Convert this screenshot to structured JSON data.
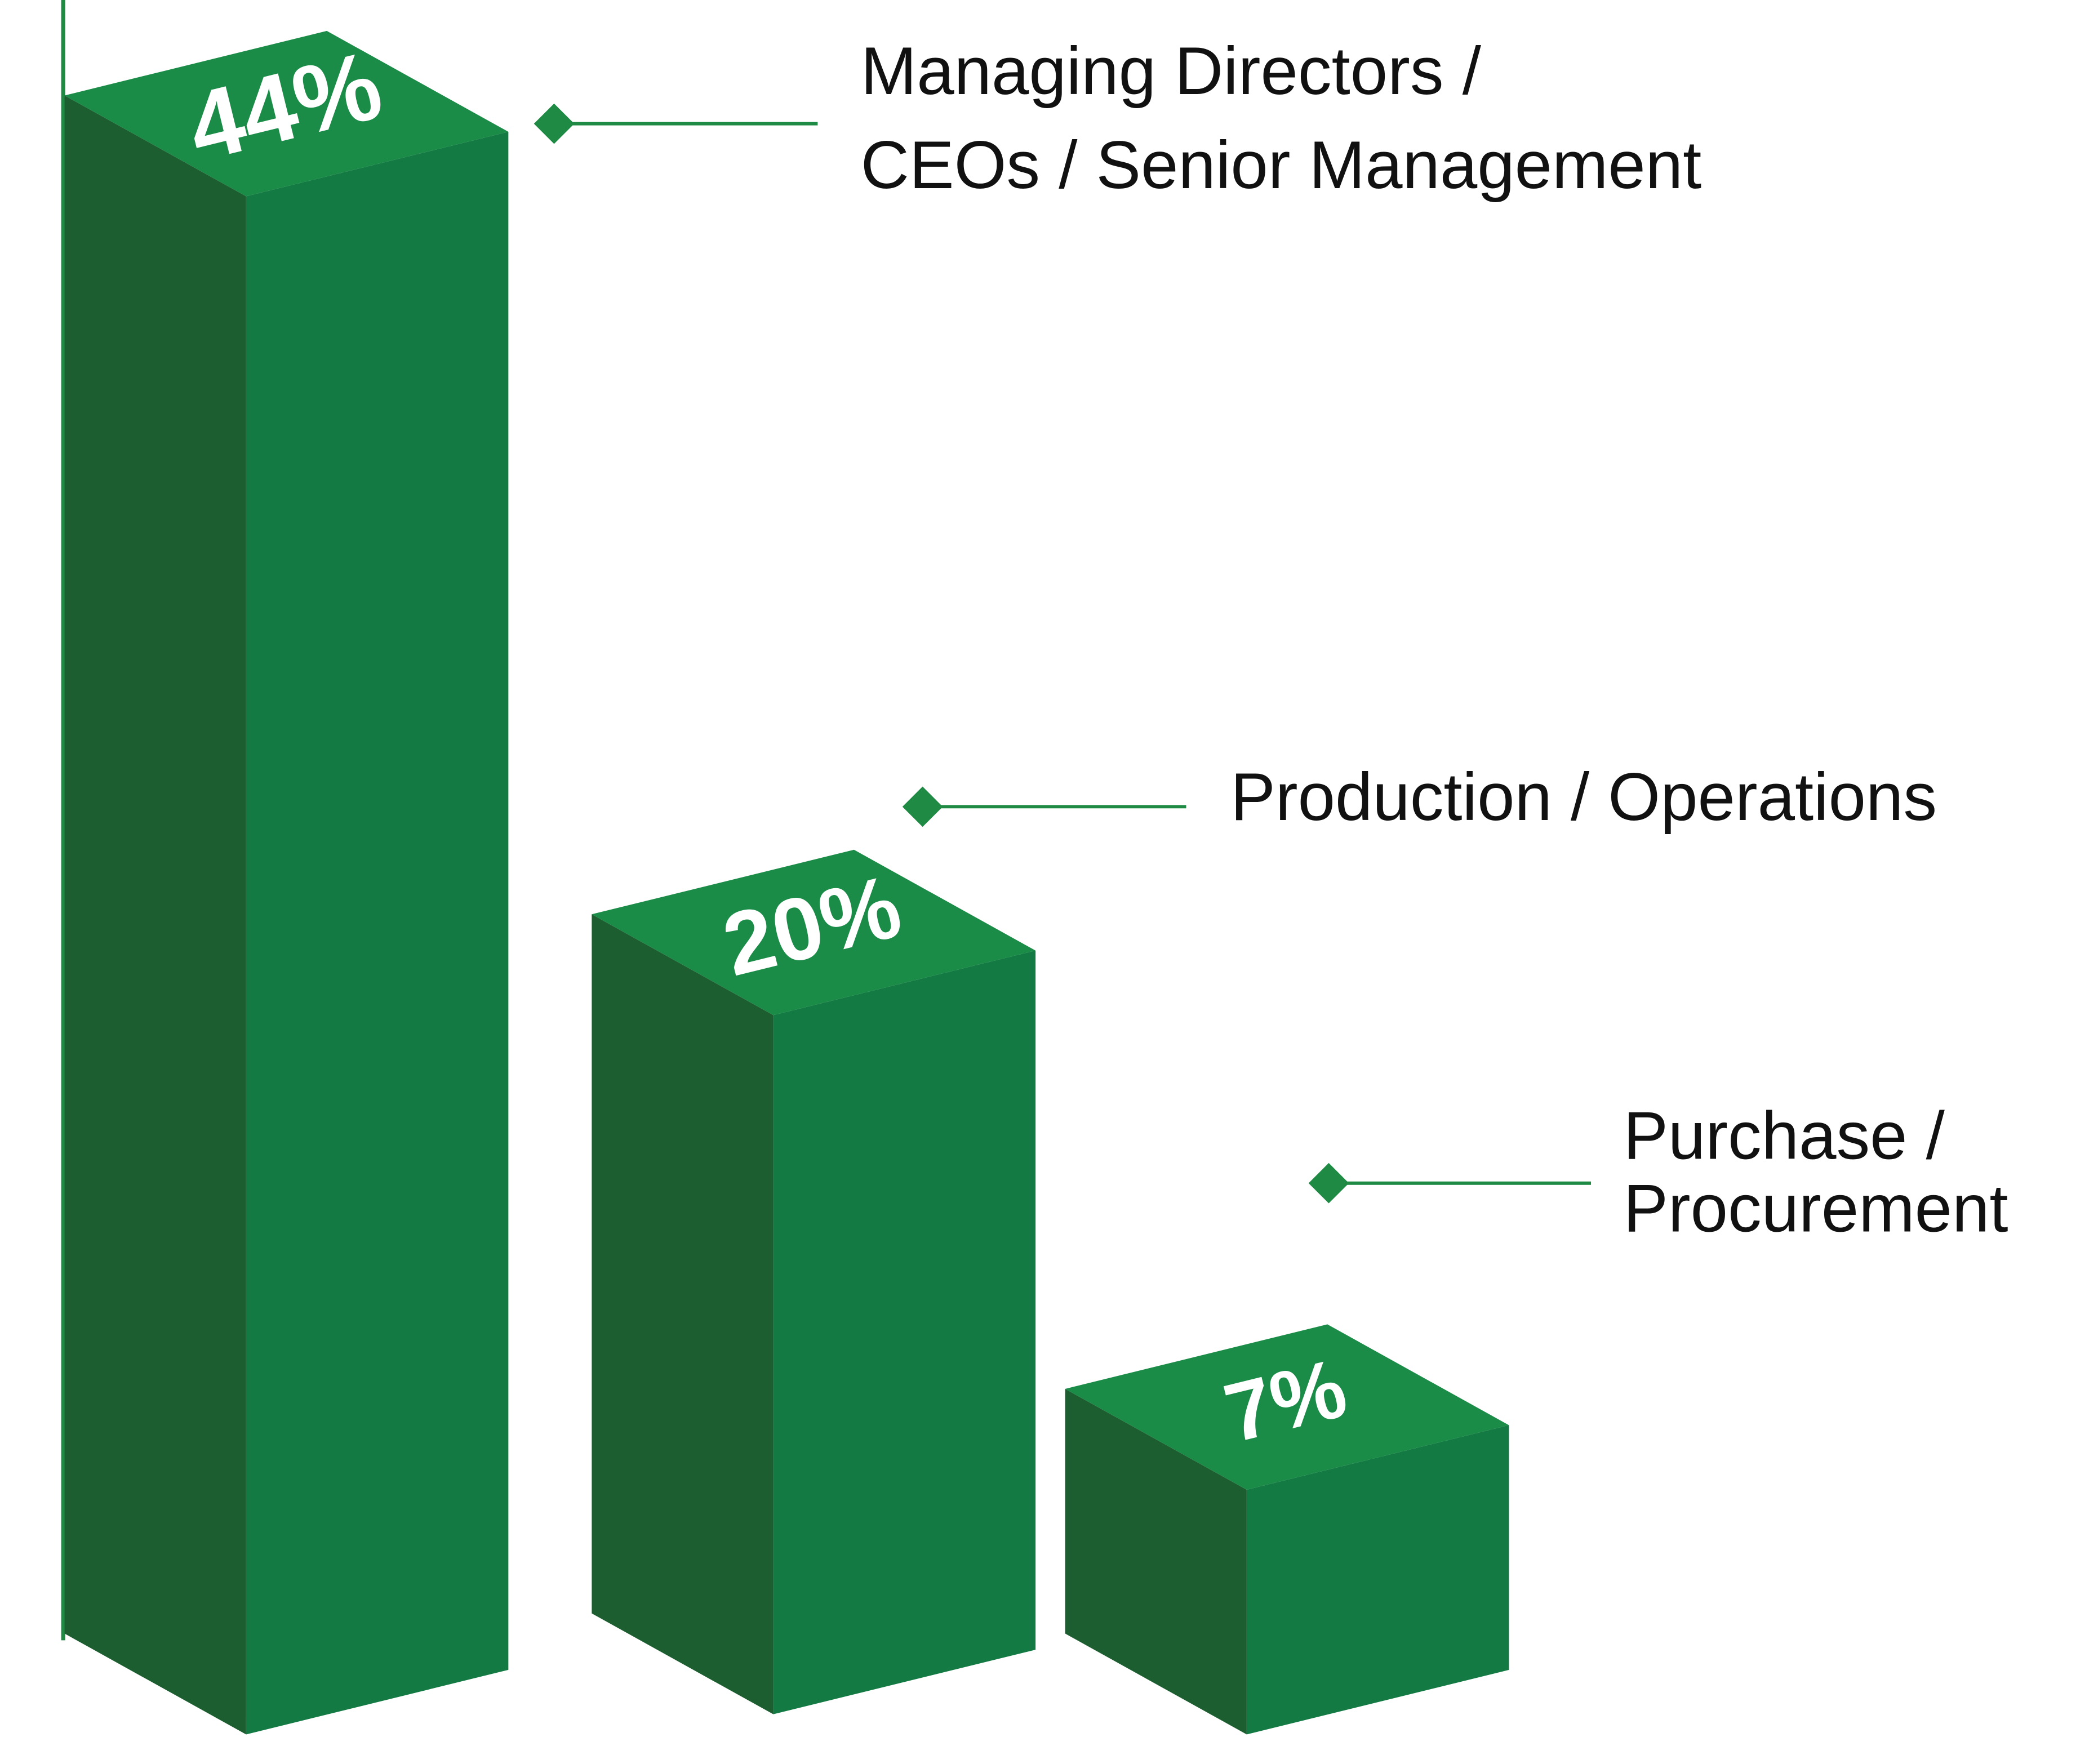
{
  "chart_data": {
    "type": "bar",
    "categories": [
      [
        "Managing Directors /",
        "CEOs / Senior Management"
      ],
      [
        "Production / Operations"
      ],
      [
        "Purchase /",
        "Procurement"
      ]
    ],
    "values": [
      44,
      20,
      7
    ],
    "value_labels": [
      "44%",
      "20%",
      "7%"
    ],
    "color": "#137a43"
  }
}
